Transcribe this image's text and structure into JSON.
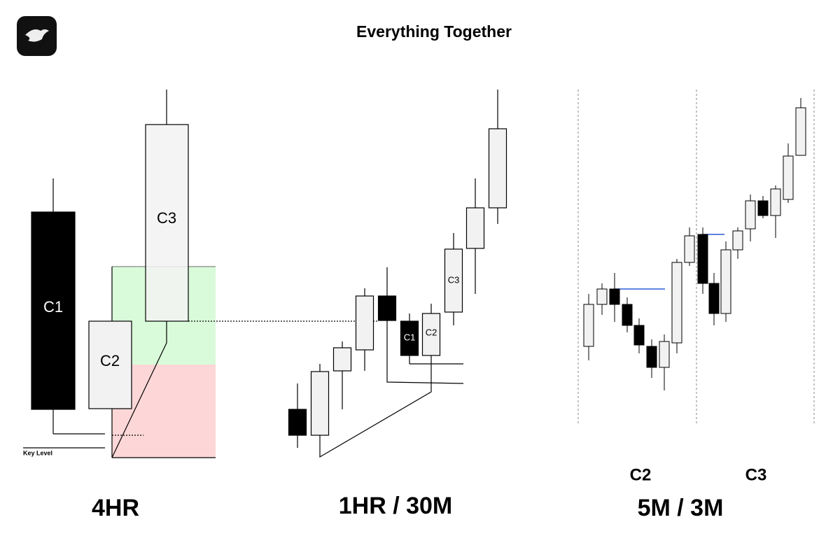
{
  "header": {
    "title": "Everything Together"
  },
  "panels": [
    {
      "label": "4HR",
      "candle_labels": [
        "C1",
        "C2",
        "C3"
      ],
      "key_level": "Key Level"
    },
    {
      "label": "1HR / 30M",
      "candle_labels": [
        "C1",
        "C2",
        "C3"
      ]
    },
    {
      "label": "5M / 3M",
      "section_labels": [
        "C2",
        "C3"
      ]
    }
  ]
}
